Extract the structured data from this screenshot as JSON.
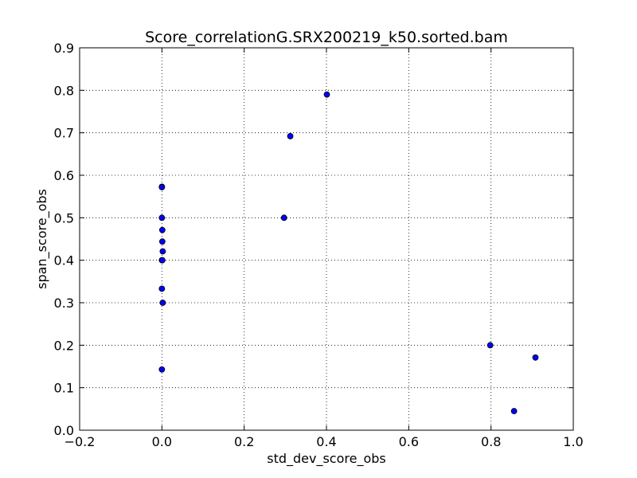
{
  "chart_data": {
    "type": "scatter",
    "title": "Score_correlationG.SRX200219_k50.sorted.bam",
    "xlabel": "std_dev_score_obs",
    "ylabel": "span_score_obs",
    "xlim": [
      -0.2,
      1.0
    ],
    "ylim": [
      0.0,
      0.9
    ],
    "xticks": [
      -0.2,
      0.0,
      0.2,
      0.4,
      0.6,
      0.8,
      1.0
    ],
    "yticks": [
      0.0,
      0.1,
      0.2,
      0.3,
      0.4,
      0.5,
      0.6,
      0.7,
      0.8,
      0.9
    ],
    "xtick_labels": [
      "−0.2",
      "0.0",
      "0.2",
      "0.4",
      "0.6",
      "0.8",
      "1.0"
    ],
    "ytick_labels": [
      "0.0",
      "0.1",
      "0.2",
      "0.3",
      "0.4",
      "0.5",
      "0.6",
      "0.7",
      "0.8",
      "0.9"
    ],
    "grid": true,
    "marker_color": "#0000ff",
    "marker_edge": "#000000",
    "points": [
      {
        "x": 0.0,
        "y": 0.573
      },
      {
        "x": 0.0,
        "y": 0.572
      },
      {
        "x": 0.0,
        "y": 0.5
      },
      {
        "x": 0.001,
        "y": 0.471
      },
      {
        "x": 0.001,
        "y": 0.444
      },
      {
        "x": 0.002,
        "y": 0.421
      },
      {
        "x": 0.0,
        "y": 0.4
      },
      {
        "x": 0.001,
        "y": 0.4
      },
      {
        "x": 0.0,
        "y": 0.333
      },
      {
        "x": 0.002,
        "y": 0.3
      },
      {
        "x": 0.0,
        "y": 0.143
      },
      {
        "x": 0.297,
        "y": 0.5
      },
      {
        "x": 0.312,
        "y": 0.692
      },
      {
        "x": 0.401,
        "y": 0.79
      },
      {
        "x": 0.798,
        "y": 0.2
      },
      {
        "x": 0.856,
        "y": 0.045
      },
      {
        "x": 0.908,
        "y": 0.171
      }
    ]
  }
}
